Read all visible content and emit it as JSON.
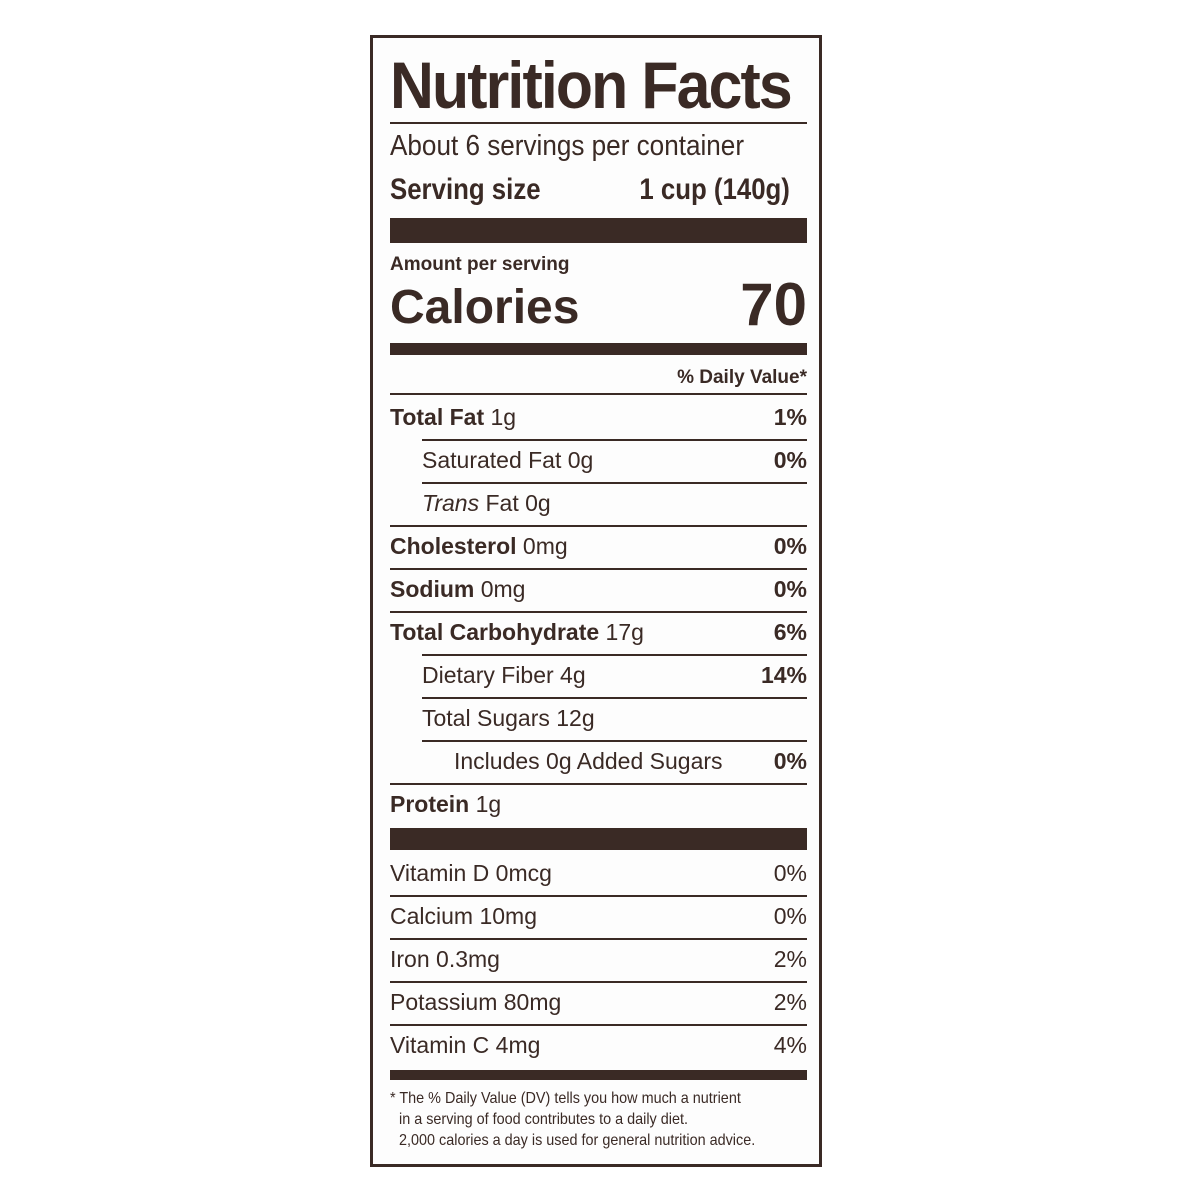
{
  "title": "Nutrition Facts",
  "servings_per_container": "About 6 servings per container",
  "serving_size_label": "Serving size",
  "serving_size_value": "1 cup (140g)",
  "amount_per_serving": "Amount per serving",
  "calories_label": "Calories",
  "calories_value": "70",
  "daily_value_header": "% Daily Value*",
  "nutrients": [
    {
      "name": "Total Fat",
      "amount": "1g",
      "dv": "1%"
    },
    {
      "name": "Saturated Fat",
      "amount": "0g",
      "dv": "0%"
    },
    {
      "name": "Trans",
      "amount": "Fat 0g",
      "dv": ""
    },
    {
      "name": "Cholesterol",
      "amount": "0mg",
      "dv": "0%"
    },
    {
      "name": "Sodium",
      "amount": "0mg",
      "dv": "0%"
    },
    {
      "name": "Total Carbohydrate",
      "amount": "17g",
      "dv": "6%"
    },
    {
      "name": "Dietary Fiber",
      "amount": "4g",
      "dv": "14%"
    },
    {
      "name": "Total Sugars",
      "amount": "12g",
      "dv": ""
    },
    {
      "name": "Includes 0g Added Sugars",
      "amount": "",
      "dv": "0%"
    },
    {
      "name": "Protein",
      "amount": "1g",
      "dv": ""
    }
  ],
  "vitamins": [
    {
      "name": "Vitamin D 0mcg",
      "dv": "0%"
    },
    {
      "name": "Calcium 10mg",
      "dv": "0%"
    },
    {
      "name": "Iron 0.3mg",
      "dv": "2%"
    },
    {
      "name": "Potassium 80mg",
      "dv": "2%"
    },
    {
      "name": "Vitamin C 4mg",
      "dv": "4%"
    }
  ],
  "footnote": [
    "* The % Daily Value (DV) tells you how much a nutrient",
    "in a serving of food contributes to a daily diet.",
    "2,000 calories a day is used for general nutrition advice."
  ],
  "colors": {
    "ink": "#3a2a25",
    "background": "#ffffff"
  }
}
